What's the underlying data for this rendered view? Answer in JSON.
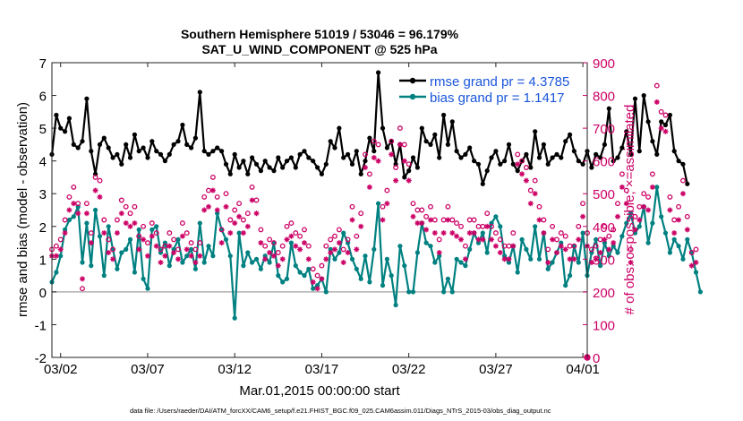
{
  "chart_data": {
    "type": "line",
    "title_line1": "Southern Hemisphere 51019 / 53046 = 96.179%",
    "title_line2": "SAT_U_WIND_COMPONENT @ 525 hPa",
    "xlabel": "Mar.01,2015 00:00:00 start",
    "ylabel_left": "rmse and bias (model - observation)",
    "ylabel_right": "# of obs: o=possible; ×=assimilated",
    "footer": "data file: /Users/raeder/DAI/ATM_forcXX/CAM6_setup/f.e21.FHIST_BGC.f09_025.CAM6assim.011/Diags_NTrS_2015-03/obs_diag_output.nc",
    "x_ticks": [
      "03/02",
      "03/07",
      "03/12",
      "03/17",
      "03/22",
      "03/27",
      "04/01"
    ],
    "x_tick_days": [
      1,
      6,
      11,
      16,
      21,
      26,
      31
    ],
    "x_range_days": [
      0.5,
      31.25
    ],
    "ylim_left": [
      -2,
      7
    ],
    "y_ticks_left": [
      "-2",
      "-1",
      "0",
      "1",
      "2",
      "3",
      "4",
      "5",
      "6",
      "7"
    ],
    "ylim_right": [
      0,
      900
    ],
    "y_ticks_right": [
      "0",
      "100",
      "200",
      "300",
      "400",
      "500",
      "600",
      "700",
      "800",
      "900"
    ],
    "legend": [
      {
        "name": "rmse grand pr = 4.3785",
        "color": "#000000"
      },
      {
        "name": "bias grand pr = 1.1417",
        "color": "#008080"
      }
    ],
    "colors": {
      "rmse": "#000000",
      "bias": "#008080",
      "obs": "#cc0066",
      "zero_line": "#b0b0b0",
      "label_right": "#cc0066"
    },
    "step_days": 0.25,
    "start_day": 0.5,
    "rmse": [
      4.2,
      5.4,
      5.0,
      4.9,
      5.3,
      4.5,
      4.4,
      4.6,
      5.9,
      4.3,
      3.6,
      4.5,
      4.7,
      4.4,
      4.1,
      4.2,
      3.9,
      4.5,
      4.1,
      4.8,
      4.3,
      4.4,
      4.1,
      4.6,
      4.3,
      4.2,
      4.0,
      4.2,
      4.5,
      4.6,
      5.1,
      4.5,
      4.4,
      4.7,
      6.1,
      4.3,
      4.2,
      4.3,
      4.4,
      4.3,
      3.9,
      3.6,
      4.2,
      3.8,
      4.0,
      3.6,
      4.1,
      3.9,
      3.7,
      4.0,
      3.8,
      3.7,
      4.1,
      3.8,
      4.0,
      4.1,
      3.8,
      4.2,
      4.3,
      4.1,
      4.0,
      3.8,
      3.6,
      3.9,
      4.6,
      4.4,
      5.0,
      4.1,
      4.2,
      3.9,
      4.3,
      3.6,
      4.0,
      4.7,
      4.3,
      6.7,
      5.0,
      4.4,
      4.6,
      3.9,
      4.5,
      3.5,
      3.7,
      4.1,
      3.8,
      5.0,
      4.6,
      4.5,
      4.8,
      4.1,
      5.4,
      4.5,
      5.2,
      4.3,
      4.1,
      4.2,
      4.4,
      4.0,
      3.9,
      3.3,
      3.7,
      4.1,
      4.3,
      3.9,
      4.0,
      4.5,
      3.9,
      3.7,
      4.0,
      4.2,
      3.8,
      4.9,
      4.1,
      4.5,
      3.9,
      4.1,
      4.2,
      4.1,
      4.6,
      4.8,
      4.3,
      4.0,
      3.9,
      4.3,
      3.8,
      4.2,
      4.1,
      4.5,
      5.6,
      4.0,
      4.1,
      4.4,
      4.9,
      4.2,
      5.9,
      4.3,
      6.0,
      5.2,
      4.6,
      4.2,
      5.2,
      5.1,
      5.4,
      4.3,
      4.0,
      3.9,
      3.3
    ],
    "bias": [
      0.3,
      0.6,
      1.1,
      1.9,
      2.2,
      2.3,
      2.6,
      0.9,
      2.1,
      0.8,
      2.5,
      1.7,
      0.5,
      2.0,
      1.3,
      0.7,
      1.2,
      1.3,
      1.6,
      0.6,
      1.9,
      0.4,
      0.1,
      1.9,
      2.0,
      1.2,
      1.5,
      0.8,
      1.3,
      1.6,
      0.9,
      1.1,
      1.3,
      0.7,
      2.1,
      0.9,
      1.4,
      1.1,
      2.4,
      1.9,
      1.6,
      1.1,
      -0.8,
      1.8,
      0.8,
      1.2,
      0.9,
      1.0,
      0.7,
      1.1,
      0.9,
      1.5,
      0.5,
      0.3,
      0.4,
      1.5,
      0.8,
      0.6,
      0.5,
      0.7,
      0.1,
      0.2,
      0.4,
      0.0,
      1.3,
      1.0,
      1.2,
      1.8,
      1.5,
      1.0,
      0.7,
      0.4,
      1.1,
      0.3,
      1.3,
      2.7,
      0.2,
      1.0,
      0.5,
      -0.4,
      1.4,
      0.8,
      0.0,
      0.0,
      1.2,
      2.1,
      1.5,
      1.4,
      0.9,
      1.1,
      0.0,
      0.4,
      0.0,
      1.0,
      0.9,
      0.8,
      1.3,
      1.8,
      1.5,
      1.8,
      1.2,
      2.1,
      2.3,
      2.0,
      1.1,
      0.9,
      1.4,
      0.6,
      1.6,
      1.3,
      1.0,
      2.0,
      1.0,
      1.8,
      0.7,
      0.9,
      1.2,
      1.5,
      0.2,
      0.5,
      1.4,
      0.9,
      1.8,
      0.5,
      1.2,
      1.6,
      0.8,
      1.5,
      1.1,
      1.4,
      1.2,
      1.7,
      2.1,
      2.4,
      1.8,
      2.0,
      2.6,
      1.5,
      2.1,
      3.2,
      2.3,
      1.8,
      1.2,
      1.6,
      1.4,
      1.0,
      1.6,
      1.2,
      0.6,
      0.0
    ],
    "obs_assimilated": [
      310,
      310,
      330,
      380,
      450,
      470,
      440,
      240,
      440,
      350,
      510,
      490,
      380,
      320,
      300,
      380,
      440,
      410,
      400,
      410,
      330,
      360,
      310,
      370,
      340,
      290,
      310,
      340,
      320,
      300,
      370,
      330,
      310,
      290,
      310,
      450,
      460,
      510,
      450,
      350,
      460,
      380,
      410,
      430,
      380,
      400,
      480,
      440,
      350,
      300,
      320,
      310,
      280,
      300,
      360,
      370,
      340,
      330,
      350,
      300,
      230,
      210,
      240,
      300,
      320,
      330,
      350,
      290,
      320,
      420,
      330,
      400,
      580,
      520,
      610,
      600,
      420,
      470,
      620,
      540,
      650,
      600,
      540,
      430,
      410,
      410,
      390,
      420,
      380,
      320,
      380,
      420,
      380,
      370,
      360,
      300,
      380,
      380,
      360,
      360,
      400,
      360,
      340,
      320,
      300,
      300,
      340,
      590,
      560,
      540,
      470,
      500,
      420,
      380,
      290,
      360,
      320,
      340,
      330,
      300,
      300,
      360,
      430,
      340,
      290,
      300,
      320,
      360,
      330,
      350,
      430,
      520,
      470,
      290,
      390,
      420,
      460,
      450,
      520,
      780,
      700,
      690,
      450,
      380,
      420,
      500,
      390,
      280,
      290
    ],
    "obs_possible": [
      330,
      340,
      360,
      420,
      490,
      520,
      470,
      210,
      470,
      380,
      550,
      540,
      420,
      360,
      330,
      420,
      480,
      460,
      440,
      460,
      370,
      400,
      350,
      410,
      380,
      330,
      340,
      380,
      360,
      330,
      410,
      380,
      350,
      330,
      350,
      490,
      510,
      550,
      490,
      390,
      500,
      420,
      450,
      470,
      420,
      440,
      520,
      480,
      390,
      340,
      360,
      350,
      320,
      340,
      400,
      410,
      380,
      370,
      390,
      340,
      270,
      250,
      280,
      340,
      360,
      370,
      390,
      330,
      360,
      460,
      370,
      440,
      620,
      560,
      660,
      650,
      460,
      510,
      660,
      580,
      700,
      650,
      590,
      470,
      450,
      450,
      430,
      460,
      420,
      360,
      420,
      460,
      420,
      410,
      400,
      340,
      420,
      420,
      400,
      400,
      440,
      400,
      380,
      360,
      340,
      340,
      380,
      620,
      600,
      580,
      510,
      540,
      460,
      420,
      330,
      400,
      360,
      380,
      370,
      340,
      340,
      400,
      470,
      380,
      330,
      340,
      360,
      400,
      370,
      390,
      470,
      560,
      510,
      330,
      430,
      460,
      500,
      490,
      560,
      830,
      750,
      740,
      490,
      420,
      460,
      540,
      430,
      320,
      330
    ]
  }
}
